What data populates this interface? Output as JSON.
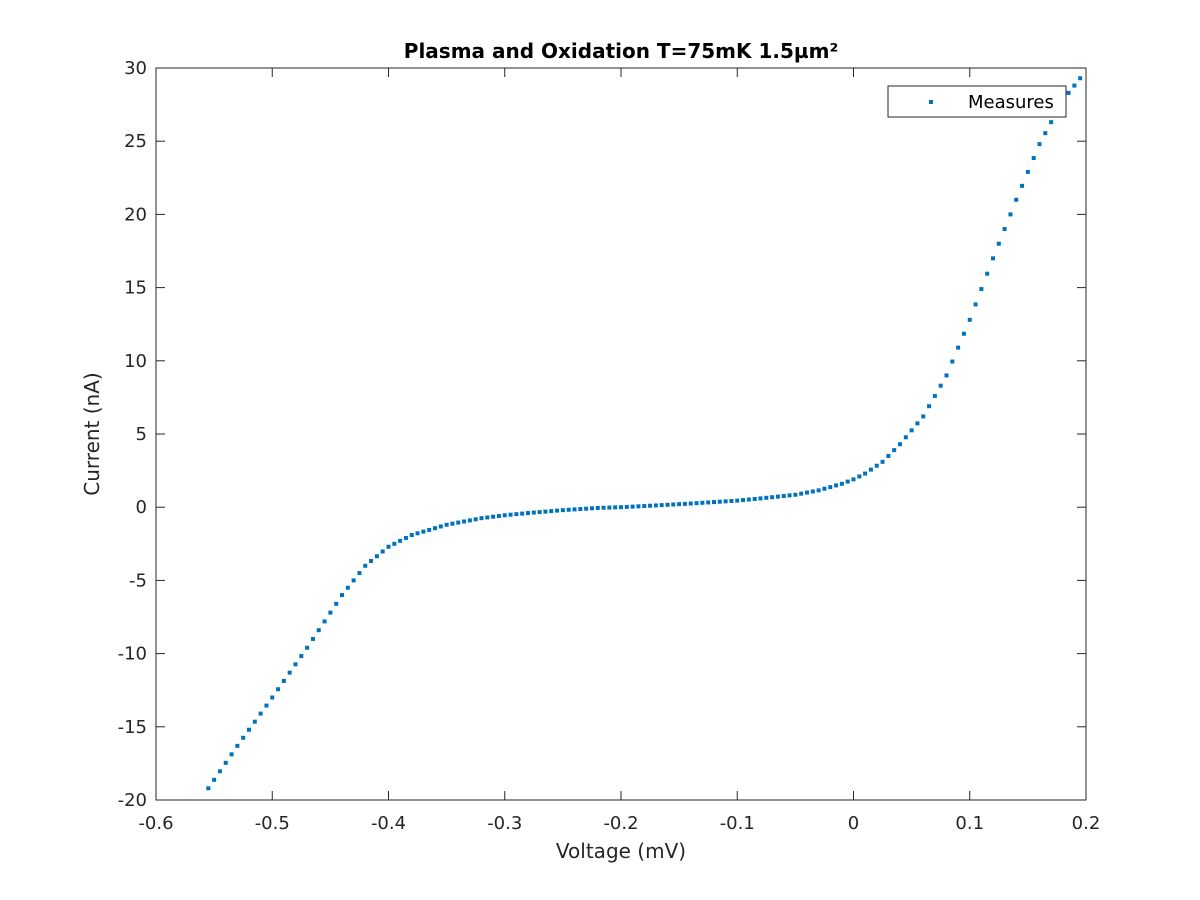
{
  "chart_data": {
    "type": "scatter",
    "title": "Plasma and Oxidation T=75mK 1.5µm²",
    "xlabel": "Voltage (mV)",
    "ylabel": "Current (nA)",
    "xlim": [
      -0.6,
      0.2
    ],
    "ylim": [
      -20,
      30
    ],
    "xticks": [
      -0.6,
      -0.5,
      -0.4,
      -0.3,
      -0.2,
      -0.1,
      0,
      0.1,
      0.2
    ],
    "xtick_labels": [
      "-0.6",
      "-0.5",
      "-0.4",
      "-0.3",
      "-0.2",
      "-0.1",
      "0",
      "0.1",
      "0.2"
    ],
    "yticks": [
      -20,
      -15,
      -10,
      -5,
      0,
      5,
      10,
      15,
      20,
      25,
      30
    ],
    "ytick_labels": [
      "-20",
      "-15",
      "-10",
      "-5",
      "0",
      "5",
      "10",
      "15",
      "20",
      "25",
      "30"
    ],
    "grid": false,
    "legend_position": "top-right",
    "marker_color": "#0072bd",
    "series": [
      {
        "name": "Measures",
        "points": [
          [
            -0.555,
            -19.2
          ],
          [
            -0.53,
            -16.3
          ],
          [
            -0.5,
            -13.0
          ],
          [
            -0.47,
            -9.6
          ],
          [
            -0.44,
            -6.0
          ],
          [
            -0.42,
            -4.0
          ],
          [
            -0.4,
            -2.7
          ],
          [
            -0.38,
            -1.9
          ],
          [
            -0.35,
            -1.2
          ],
          [
            -0.32,
            -0.75
          ],
          [
            -0.3,
            -0.55
          ],
          [
            -0.28,
            -0.4
          ],
          [
            -0.25,
            -0.2
          ],
          [
            -0.22,
            -0.05
          ],
          [
            -0.2,
            0.0
          ],
          [
            -0.17,
            0.12
          ],
          [
            -0.14,
            0.25
          ],
          [
            -0.12,
            0.35
          ],
          [
            -0.1,
            0.45
          ],
          [
            -0.08,
            0.6
          ],
          [
            -0.05,
            0.85
          ],
          [
            -0.03,
            1.15
          ],
          [
            -0.01,
            1.6
          ],
          [
            0.0,
            1.9
          ],
          [
            0.01,
            2.3
          ],
          [
            0.025,
            3.1
          ],
          [
            0.04,
            4.3
          ],
          [
            0.06,
            6.2
          ],
          [
            0.08,
            9.0
          ],
          [
            0.1,
            12.8
          ],
          [
            0.12,
            17.0
          ],
          [
            0.14,
            21.0
          ],
          [
            0.16,
            24.8
          ],
          [
            0.18,
            27.8
          ],
          [
            0.198,
            29.6
          ]
        ]
      }
    ]
  }
}
